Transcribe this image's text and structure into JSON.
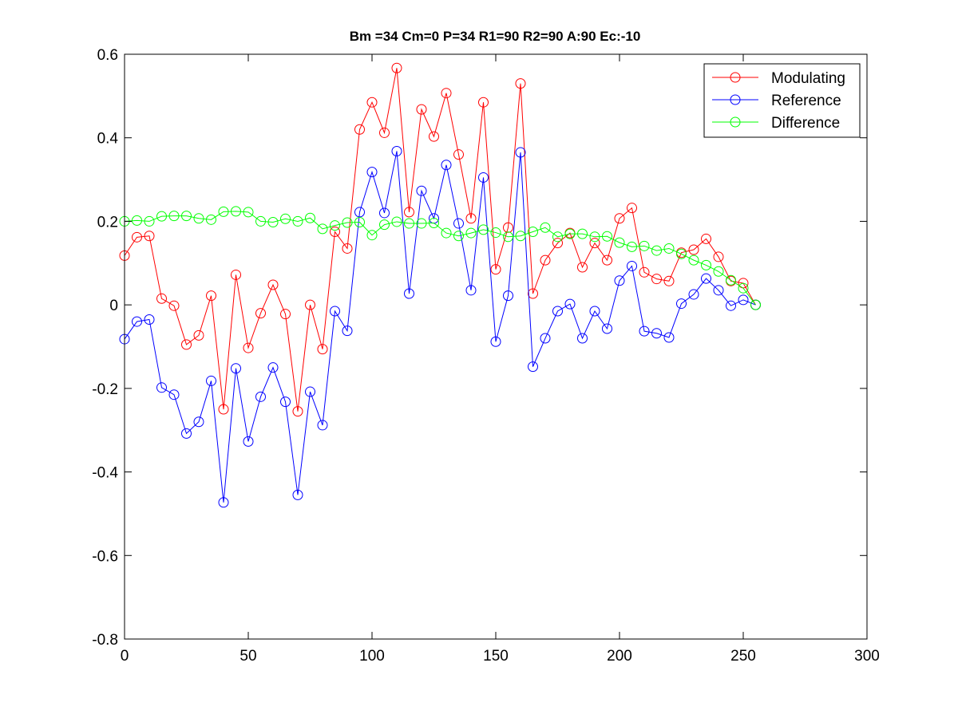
{
  "chart_data": {
    "type": "line",
    "title": "Bm =34  Cm=0  P=34  R1=90  R2=90  A:90  Ec:-10",
    "xlabel": "",
    "ylabel": "",
    "xlim": [
      0,
      300
    ],
    "ylim": [
      -0.8,
      0.6
    ],
    "grid": false,
    "legend_position": "top-right",
    "xticks": [
      0,
      50,
      100,
      150,
      200,
      250,
      300
    ],
    "yticks": [
      -0.8,
      -0.6,
      -0.4,
      -0.2,
      0,
      0.2,
      0.4,
      0.6
    ],
    "xtick_labels": [
      "0",
      "50",
      "100",
      "150",
      "200",
      "250",
      "300"
    ],
    "ytick_labels": [
      "-0.8",
      "-0.6",
      "-0.4",
      "-0.2",
      "0",
      "0.2",
      "0.4",
      "0.6"
    ],
    "x": [
      0,
      5,
      10,
      15,
      20,
      25,
      30,
      35,
      40,
      45,
      50,
      55,
      60,
      65,
      70,
      75,
      80,
      85,
      90,
      95,
      100,
      105,
      110,
      115,
      120,
      125,
      130,
      135,
      140,
      145,
      150,
      155,
      160,
      165,
      170,
      175,
      180,
      185,
      190,
      195,
      200,
      205,
      210,
      215,
      220,
      225,
      230,
      235,
      240,
      245,
      250,
      255
    ],
    "series": [
      {
        "name": "Modulating",
        "color": "#ff0000",
        "marker": "circle",
        "values": [
          0.118,
          0.162,
          0.165,
          0.015,
          -0.002,
          -0.095,
          -0.073,
          0.022,
          -0.25,
          0.072,
          -0.103,
          -0.02,
          0.048,
          -0.022,
          -0.255,
          0.0,
          -0.106,
          0.175,
          0.135,
          0.42,
          0.485,
          0.412,
          0.567,
          0.222,
          0.468,
          0.403,
          0.507,
          0.36,
          0.207,
          0.485,
          0.085,
          0.185,
          0.53,
          0.027,
          0.107,
          0.148,
          0.172,
          0.09,
          0.148,
          0.107,
          0.207,
          0.232,
          0.078,
          0.062,
          0.057,
          0.125,
          0.132,
          0.158,
          0.115,
          0.057,
          0.052,
          0.0
        ]
      },
      {
        "name": "Reference",
        "color": "#0000ff",
        "marker": "circle",
        "values": [
          -0.082,
          -0.04,
          -0.035,
          -0.198,
          -0.215,
          -0.308,
          -0.28,
          -0.182,
          -0.473,
          -0.152,
          -0.327,
          -0.22,
          -0.15,
          -0.232,
          -0.455,
          -0.208,
          -0.288,
          -0.015,
          -0.062,
          0.222,
          0.318,
          0.22,
          0.368,
          0.027,
          0.273,
          0.207,
          0.335,
          0.195,
          0.035,
          0.305,
          -0.088,
          0.022,
          0.365,
          -0.148,
          -0.08,
          -0.015,
          0.002,
          -0.08,
          -0.015,
          -0.057,
          0.058,
          0.093,
          -0.063,
          -0.068,
          -0.078,
          0.003,
          0.025,
          0.063,
          0.035,
          -0.002,
          0.012,
          0.0
        ]
      },
      {
        "name": "Difference",
        "color": "#00ff00",
        "marker": "circle",
        "values": [
          0.2,
          0.202,
          0.2,
          0.212,
          0.213,
          0.213,
          0.207,
          0.204,
          0.223,
          0.224,
          0.222,
          0.2,
          0.198,
          0.206,
          0.2,
          0.208,
          0.182,
          0.19,
          0.197,
          0.198,
          0.167,
          0.192,
          0.199,
          0.195,
          0.195,
          0.196,
          0.172,
          0.165,
          0.172,
          0.18,
          0.173,
          0.163,
          0.165,
          0.175,
          0.185,
          0.163,
          0.17,
          0.17,
          0.163,
          0.164,
          0.149,
          0.139,
          0.141,
          0.13,
          0.135,
          0.122,
          0.107,
          0.095,
          0.08,
          0.059,
          0.04,
          0.0
        ]
      }
    ]
  }
}
